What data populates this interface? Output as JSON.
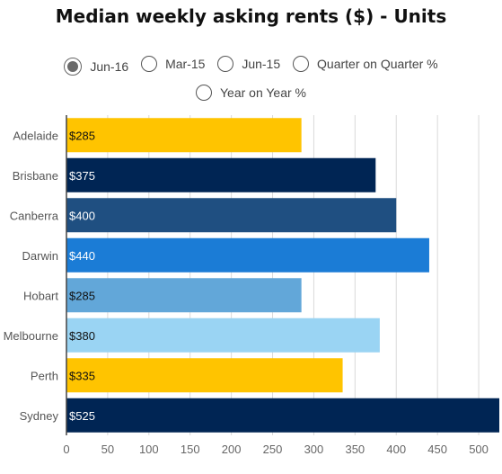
{
  "chart_data": {
    "type": "bar",
    "orientation": "horizontal",
    "title": "Median weekly asking rents ($) - Units",
    "categories": [
      "Adelaide",
      "Brisbane",
      "Canberra",
      "Darwin",
      "Hobart",
      "Melbourne",
      "Perth",
      "Sydney"
    ],
    "values": [
      285,
      375,
      400,
      440,
      285,
      380,
      335,
      525
    ],
    "data_labels": [
      "$285",
      "$375",
      "$400",
      "$440",
      "$285",
      "$380",
      "$335",
      "$525"
    ],
    "bar_colors": [
      "#FFC400",
      "#002554",
      "#1F4F81",
      "#1B7CD6",
      "#62A7D9",
      "#9AD4F3",
      "#FFC400",
      "#002554"
    ],
    "label_colors": [
      "#111111",
      "#ffffff",
      "#ffffff",
      "#ffffff",
      "#111111",
      "#111111",
      "#111111",
      "#ffffff"
    ],
    "xlim": [
      0,
      525
    ],
    "xticks": [
      0,
      50,
      100,
      150,
      200,
      250,
      300,
      350,
      400,
      450,
      500
    ],
    "grid": true
  },
  "controls": {
    "options": [
      {
        "label": "Jun-16",
        "checked": true
      },
      {
        "label": "Mar-15",
        "checked": false
      },
      {
        "label": "Jun-15",
        "checked": false
      },
      {
        "label": "Quarter on Quarter %",
        "checked": false
      },
      {
        "label": "Year on Year %",
        "checked": false
      }
    ]
  }
}
